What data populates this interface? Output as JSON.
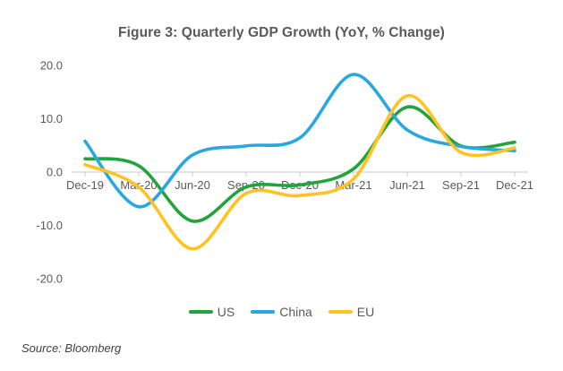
{
  "title": "Figure 3: Quarterly GDP Growth (YoY, % Change)",
  "source_note": "Source: Bloomberg",
  "colors": {
    "title_text": "#595959",
    "axis_text": "#595959",
    "axis_line": "#C9C9C9",
    "background": "#FFFFFF",
    "source_text": "#404040"
  },
  "chart_data": {
    "type": "line",
    "smoothed": true,
    "title": "Figure 3: Quarterly GDP Growth (YoY, % Change)",
    "xlabel": "",
    "ylabel": "",
    "categories": [
      "Dec-19",
      "Mar-20",
      "Jun-20",
      "Sep-20",
      "Dec-20",
      "Mar-21",
      "Jun-21",
      "Sep-21",
      "Dec-21"
    ],
    "series": [
      {
        "name": "US",
        "color": "#22A43C",
        "values": [
          2.5,
          1.2,
          -9.2,
          -2.8,
          -2.4,
          0.6,
          12.2,
          4.9,
          5.6
        ]
      },
      {
        "name": "China",
        "color": "#29A8E0",
        "values": [
          5.8,
          -6.5,
          3.2,
          4.9,
          6.4,
          18.3,
          7.9,
          4.8,
          4.0
        ]
      },
      {
        "name": "EU",
        "color": "#FFC220",
        "values": [
          1.4,
          -2.8,
          -14.4,
          -4.0,
          -4.4,
          -1.3,
          14.3,
          3.7,
          4.5
        ]
      }
    ],
    "y_ticks": [
      20,
      10,
      0,
      -10,
      -20
    ],
    "y_tick_labels": [
      "20.0",
      "10.0",
      "0.0",
      "-10.0",
      "-20.0"
    ],
    "ylim": [
      -20,
      20
    ],
    "grid": false,
    "legend_position": "bottom"
  }
}
